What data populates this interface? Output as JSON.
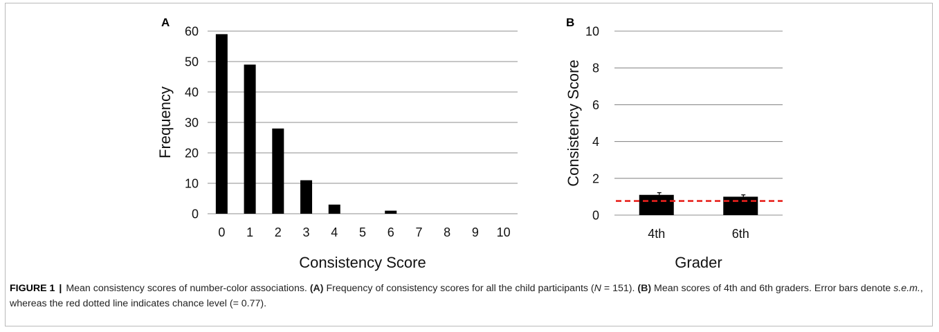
{
  "figure": {
    "caption_label": "FIGURE 1",
    "caption_separator": "|",
    "caption_title": "Mean consistency scores of number-color associations.",
    "caption_a_tag": "(A)",
    "caption_a_text_pre": "Frequency of consistency scores for all the child participants (",
    "caption_a_n_var": "N",
    "caption_a_n_val": " = 151).",
    "caption_b_tag": "(B)",
    "caption_b_text_pre": "Mean scores of 4th and 6th graders. Error bars denote ",
    "caption_b_sem": "s.e.m.",
    "caption_b_text_post": ", whereas the red dotted line indicates chance level (= 0.77)."
  },
  "chart_data": [
    {
      "panel": "A",
      "type": "bar",
      "xlabel": "Consistency Score",
      "ylabel": "Frequency",
      "categories": [
        "0",
        "1",
        "2",
        "3",
        "4",
        "5",
        "6",
        "7",
        "8",
        "9",
        "10"
      ],
      "values": [
        59,
        49,
        28,
        11,
        3,
        0,
        1,
        0,
        0,
        0,
        0
      ],
      "ylim": [
        0,
        60
      ],
      "yticks": [
        0,
        10,
        20,
        30,
        40,
        50,
        60
      ],
      "grid": true,
      "bar_color": "#000000",
      "grid_color": "#8c8c8c"
    },
    {
      "panel": "B",
      "type": "bar",
      "xlabel": "Grader",
      "ylabel": "Consistency Score",
      "categories": [
        "4th",
        "6th"
      ],
      "values": [
        1.1,
        1.0
      ],
      "errors": [
        0.12,
        0.1
      ],
      "ylim": [
        0,
        10
      ],
      "yticks": [
        0,
        2,
        4,
        6,
        8,
        10
      ],
      "grid": true,
      "chance_level": 0.77,
      "chance_line_color": "#e8201c",
      "bar_color": "#000000",
      "grid_color": "#8c8c8c"
    }
  ]
}
